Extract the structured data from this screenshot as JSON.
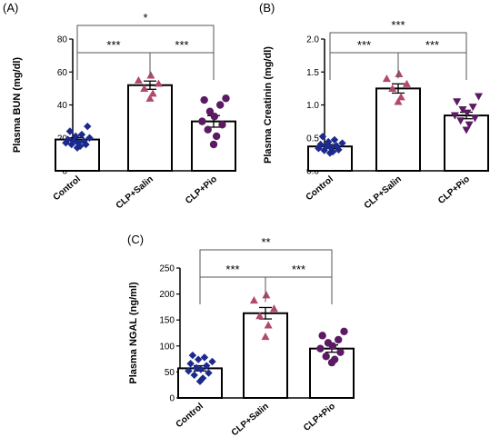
{
  "chart_data": [
    {
      "panel": "(A)",
      "type": "bar",
      "ylabel": "Plasma BUN (mg/dl)",
      "ylim": [
        0,
        80
      ],
      "yticks": [
        0,
        20,
        40,
        60,
        80
      ],
      "categories": [
        "Control",
        "CLP+Salin",
        "CLP+Pio"
      ],
      "values": [
        19,
        52,
        30
      ],
      "sem": [
        1.2,
        2.5,
        3.5
      ],
      "points": [
        [
          14,
          15,
          16,
          16,
          17,
          17,
          18,
          18,
          19,
          20,
          21,
          22,
          24,
          27
        ],
        [
          44,
          47,
          50,
          53,
          55,
          58
        ],
        [
          16,
          21,
          25,
          28,
          30,
          33,
          36,
          40,
          43,
          44
        ]
      ],
      "point_colors": [
        "#1b2a8c",
        "#b0496b",
        "#5b1a63"
      ],
      "point_shapes": [
        "diamond",
        "triangle",
        "circle"
      ],
      "significance": [
        {
          "from": 0,
          "to": 2,
          "label": "*"
        },
        {
          "from": 0,
          "to": 1,
          "label": "***"
        },
        {
          "from": 1,
          "to": 2,
          "label": "***"
        }
      ]
    },
    {
      "panel": "(B)",
      "type": "bar",
      "ylabel": "Plasma Creatinin (mg/dl)",
      "ylim": [
        0,
        2.0
      ],
      "yticks": [
        "0.0",
        "0.5",
        "1.0",
        "1.5",
        "2.0"
      ],
      "categories": [
        "Control",
        "CLP+Salin",
        "CLP+Pio"
      ],
      "values": [
        0.37,
        1.25,
        0.84
      ],
      "sem": [
        0.03,
        0.07,
        0.05
      ],
      "points": [
        [
          0.27,
          0.29,
          0.31,
          0.32,
          0.34,
          0.35,
          0.37,
          0.38,
          0.4,
          0.42,
          0.44,
          0.47,
          0.52
        ],
        [
          1.05,
          1.12,
          1.25,
          1.32,
          1.4,
          1.47
        ],
        [
          0.62,
          0.7,
          0.76,
          0.8,
          0.84,
          0.88,
          0.93,
          0.97,
          1.05,
          1.13
        ]
      ],
      "point_colors": [
        "#1b2a8c",
        "#b0496b",
        "#5b1a63"
      ],
      "point_shapes": [
        "diamond",
        "triangle",
        "triangle-down"
      ],
      "significance": [
        {
          "from": 0,
          "to": 2,
          "label": "***"
        },
        {
          "from": 0,
          "to": 1,
          "label": "***"
        },
        {
          "from": 1,
          "to": 2,
          "label": "***"
        }
      ]
    },
    {
      "panel": "(C)",
      "type": "bar",
      "ylabel": "Plasma NGAL (ng/ml)",
      "ylim": [
        0,
        250
      ],
      "yticks": [
        0,
        50,
        100,
        150,
        200,
        250
      ],
      "categories": [
        "Control",
        "CLP+Salin",
        "CLP+Pio"
      ],
      "values": [
        57,
        163,
        95
      ],
      "sem": [
        5,
        11,
        7
      ],
      "points": [
        [
          32,
          38,
          44,
          48,
          52,
          55,
          58,
          62,
          66,
          70,
          74,
          78,
          82
        ],
        [
          118,
          140,
          158,
          172,
          188,
          198
        ],
        [
          68,
          74,
          80,
          88,
          95,
          100,
          106,
          112,
          120,
          128
        ]
      ],
      "point_colors": [
        "#1b2a8c",
        "#b0496b",
        "#5b1a63"
      ],
      "point_shapes": [
        "diamond",
        "triangle",
        "circle"
      ],
      "significance": [
        {
          "from": 0,
          "to": 2,
          "label": "**"
        },
        {
          "from": 0,
          "to": 1,
          "label": "***"
        },
        {
          "from": 1,
          "to": 2,
          "label": "***"
        }
      ]
    }
  ]
}
